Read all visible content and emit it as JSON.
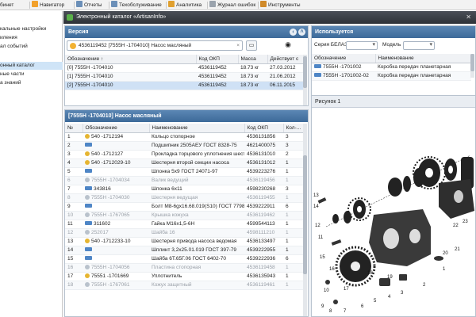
{
  "menu": {
    "items": [
      {
        "label": "бинет",
        "icon": "cabinet-icon",
        "color": "#8a8f96"
      },
      {
        "label": "Навигатор",
        "icon": "navigator-plus-icon",
        "color": "#f2a12c"
      },
      {
        "label": "Отчеты",
        "icon": "reports-icon",
        "color": "#6b8fb8"
      },
      {
        "label": "Техобслуживание",
        "icon": "maintenance-icon",
        "color": "#6b8fb8"
      },
      {
        "label": "Аналитика",
        "icon": "analytics-icon",
        "color": "#e0a030"
      },
      {
        "label": "Журнал ошибок",
        "icon": "error-log-icon",
        "color": "#9aa3ad"
      },
      {
        "label": "Инструменты",
        "icon": "tools-icon",
        "color": "#d08a2a"
      }
    ]
  },
  "left_tree": {
    "items": [
      {
        "label": "кальные настройки",
        "selected": false
      },
      {
        "label": "иления",
        "selected": false
      },
      {
        "label": "ал событий",
        "selected": false
      },
      {
        "label": "онный каталог",
        "selected": true
      },
      {
        "label": "ные части",
        "selected": false
      },
      {
        "label": "а знаний",
        "selected": false
      }
    ]
  },
  "catalog": {
    "title": "Электронный каталог «ArtisanInfo»",
    "version_panel": {
      "title": "Версия",
      "search_value": "4536119452 [7555Н -1704010] Насос масляный",
      "columns": [
        "Обозначение ↑",
        "Код ОКП",
        "Масса",
        "Действует с"
      ],
      "rows": [
        [
          "[0] 7555Н -1704010",
          "4536119452",
          "18.73 кг",
          "27.03.2012"
        ],
        [
          "[1] 7555Н -1704010",
          "4536119452",
          "18.73 кг",
          "21.06.2012"
        ],
        [
          "[2] 7555Н -1704010",
          "4536119452",
          "18.73 кг",
          "06.11.2015"
        ]
      ],
      "selected_row": 2
    },
    "parts_panel": {
      "title": "[7555Н -1704010] Насос масляный",
      "columns": [
        "№",
        "Обозначение",
        "Наименование",
        "Код ОКП",
        "Кол-..."
      ],
      "rows": [
        {
          "n": "1",
          "kind": "y",
          "code": "540 -1712194",
          "name": "Кольцо стопорное",
          "okp": "4536131856",
          "qty": "3",
          "grey": false
        },
        {
          "n": "2",
          "kind": "l",
          "code": "",
          "name": "Подшипник 2505АЕУ ГОСТ 8328-75",
          "okp": "4621400075",
          "qty": "3",
          "grey": false
        },
        {
          "n": "3",
          "kind": "y",
          "code": "540 -1712127",
          "name": "Прокладка торцового уплотнения шестерни",
          "okp": "4536131010",
          "qty": "2",
          "grey": false
        },
        {
          "n": "4",
          "kind": "y",
          "code": "540 -1712029-10",
          "name": "Шестерня второй секции насоса",
          "okp": "4536131012",
          "qty": "1",
          "grey": false
        },
        {
          "n": "5",
          "kind": "l",
          "code": "",
          "name": "Шпонка 5х9 ГОСТ 24071-97",
          "okp": "4539223276",
          "qty": "1",
          "grey": false
        },
        {
          "n": "6",
          "kind": "c",
          "code": "7555Н -1704034",
          "name": "Валик ведущий",
          "okp": "4536119456",
          "qty": "1",
          "grey": true
        },
        {
          "n": "7",
          "kind": "l",
          "code": "343816",
          "name": "Шпонка 6х11",
          "okp": "4598230268",
          "qty": "3",
          "grey": false
        },
        {
          "n": "8",
          "kind": "c",
          "code": "7555Н -1704030",
          "name": "Шестерня ведущая",
          "okp": "4536119455",
          "qty": "1",
          "grey": true
        },
        {
          "n": "9",
          "kind": "l",
          "code": "",
          "name": "Болт М8-6gх16.68.019(S10) ГОСТ 7798-70",
          "okp": "4539222911",
          "qty": "6",
          "grey": false
        },
        {
          "n": "10",
          "kind": "c",
          "code": "7555Н -1767065",
          "name": "Крышка кожуха",
          "okp": "4536119462",
          "qty": "1",
          "grey": true
        },
        {
          "n": "11",
          "kind": "l",
          "code": "311602",
          "name": "Гайка М16х1,5-6Н",
          "okp": "4599544113",
          "qty": "1",
          "grey": false
        },
        {
          "n": "12",
          "kind": "c",
          "code": "252017",
          "name": "Шайба 16",
          "okp": "4598111210",
          "qty": "1",
          "grey": true
        },
        {
          "n": "13",
          "kind": "y",
          "code": "540 -1712233-10",
          "name": "Шестерня привода насоса ведомая",
          "okp": "4536133497",
          "qty": "1",
          "grey": false
        },
        {
          "n": "14",
          "kind": "l",
          "code": "",
          "name": "Шплинт 3,2х25.01.019 ГОСТ 397-79",
          "okp": "4539222955",
          "qty": "1",
          "grey": false
        },
        {
          "n": "15",
          "kind": "l",
          "code": "",
          "name": "Шайба 6Т.65Г.06 ГОСТ 6402-70",
          "okp": "4539222936",
          "qty": "6",
          "grey": false
        },
        {
          "n": "16",
          "kind": "c",
          "code": "7555Н -1704056",
          "name": "Пластина стопорная",
          "okp": "4536119458",
          "qty": "1",
          "grey": true
        },
        {
          "n": "17",
          "kind": "y",
          "code": "75551 -1701669",
          "name": "Уплотнитель",
          "okp": "4536135943",
          "qty": "1",
          "grey": false
        },
        {
          "n": "18",
          "kind": "c",
          "code": "7555Н -1767061",
          "name": "Кожух защитный",
          "okp": "4536119461",
          "qty": "1",
          "grey": true
        }
      ]
    },
    "uses_panel": {
      "title": "Используется",
      "series_label": "Серия БЕЛАЗ",
      "model_label": "Модель",
      "columns": [
        "Обозначение",
        "Наименование"
      ],
      "rows": [
        [
          "7555Н -1701002",
          "Коробка передач планетарная"
        ],
        [
          "7555Н -1701002-02",
          "Коробка передач планетарная"
        ]
      ]
    },
    "figure_panel": {
      "title": "Рисунок 1",
      "callouts": [
        "1",
        "2",
        "3",
        "4",
        "5",
        "6",
        "7",
        "8",
        "9",
        "10",
        "11",
        "12",
        "13",
        "14",
        "15",
        "16",
        "17",
        "18",
        "19",
        "20",
        "21",
        "22",
        "23"
      ]
    }
  }
}
